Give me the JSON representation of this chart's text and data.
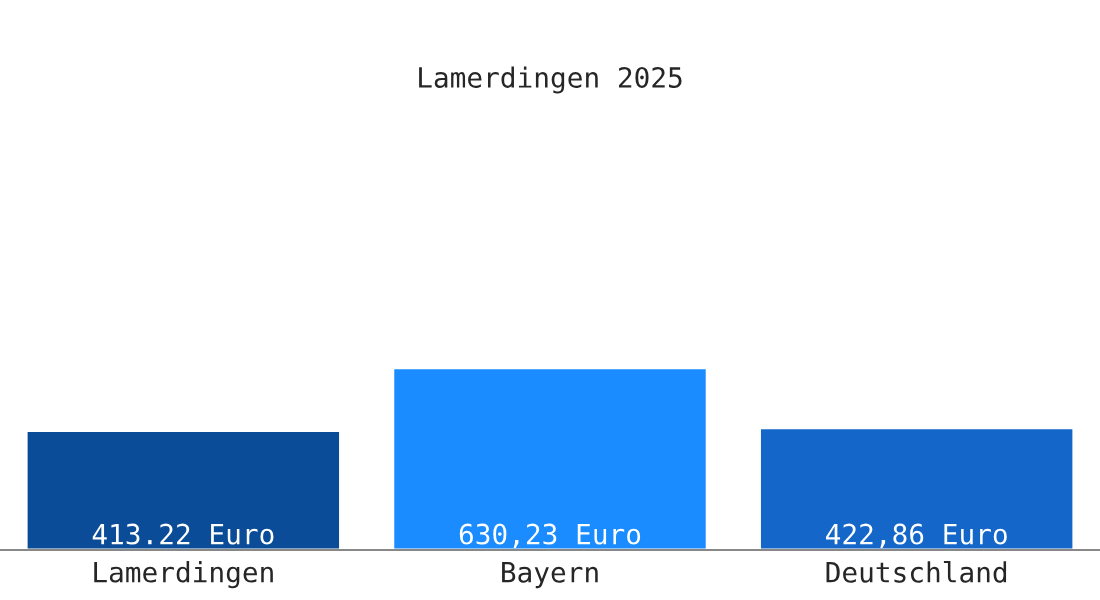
{
  "chart_data": {
    "type": "bar",
    "title": "Lamerdingen 2025",
    "categories": [
      "Lamerdingen",
      "Bayern",
      "Deutschland"
    ],
    "values": [
      413.22,
      630.23,
      422.86
    ],
    "colors": [
      "#0a4c97",
      "#1a8cff",
      "#1467c8"
    ],
    "value_labels": [
      "413.22 Euro",
      "630,23 Euro",
      "422,86 Euro"
    ],
    "grid": false,
    "legend": false
  }
}
